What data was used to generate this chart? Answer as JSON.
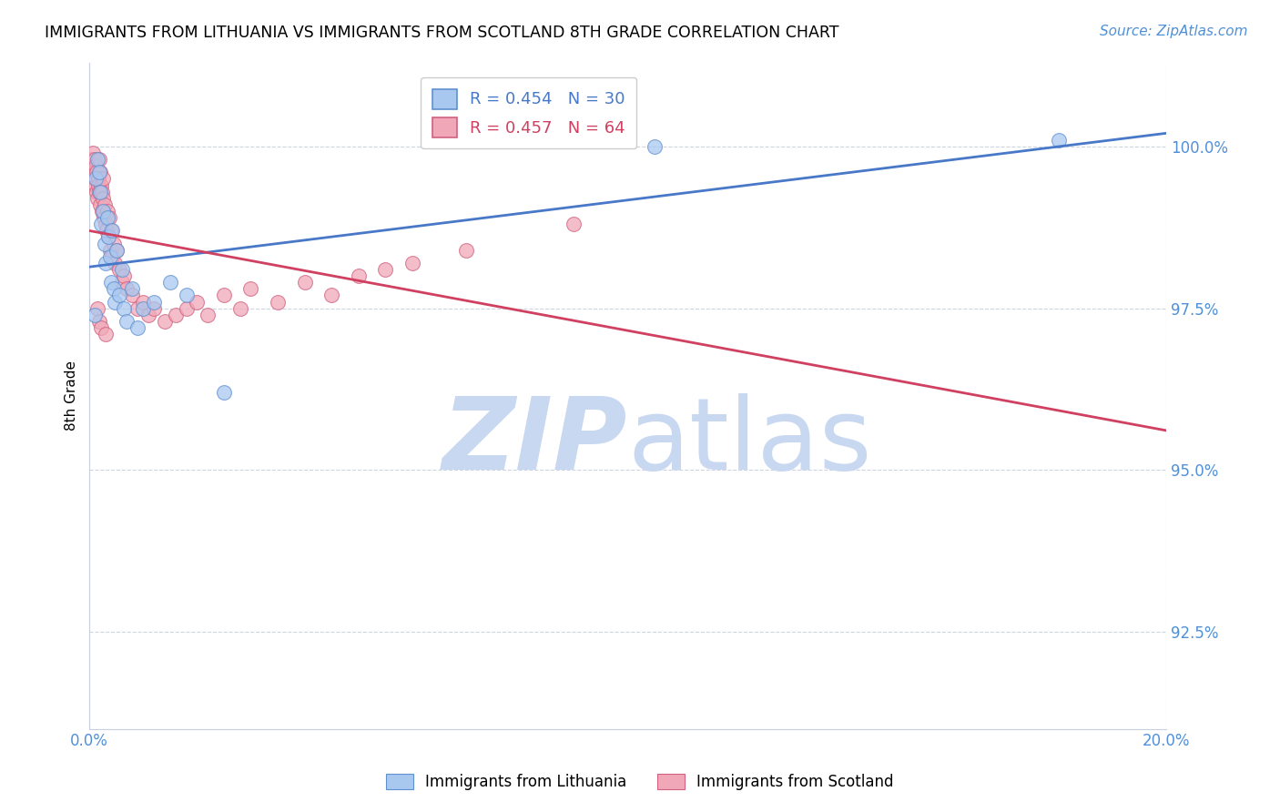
{
  "title": "IMMIGRANTS FROM LITHUANIA VS IMMIGRANTS FROM SCOTLAND 8TH GRADE CORRELATION CHART",
  "source": "Source: ZipAtlas.com",
  "ylabel": "8th Grade",
  "xlim": [
    0.0,
    20.0
  ],
  "ylim": [
    91.0,
    101.3
  ],
  "yticks": [
    92.5,
    95.0,
    97.5,
    100.0
  ],
  "ytick_labels": [
    "92.5%",
    "95.0%",
    "97.5%",
    "100.0%"
  ],
  "xtick_positions": [
    0.0,
    20.0
  ],
  "xtick_labels": [
    "0.0%",
    "20.0%"
  ],
  "color_blue_fill": "#a8c8f0",
  "color_blue_edge": "#6090d0",
  "color_pink_fill": "#f0a8b8",
  "color_pink_edge": "#d06080",
  "color_blue_line": "#4878c8",
  "color_pink_line": "#d04060",
  "color_axis_labels": "#5090d8",
  "watermark_zip_color": "#c8d8f0",
  "watermark_atlas_color": "#c8d8f0",
  "legend1_text": "R = 0.454   N = 30",
  "legend2_text": "R = 0.457   N = 64",
  "lithuania_x": [
    0.1,
    0.12,
    0.15,
    0.18,
    0.2,
    0.22,
    0.25,
    0.28,
    0.3,
    0.33,
    0.35,
    0.38,
    0.4,
    0.42,
    0.45,
    0.48,
    0.5,
    0.55,
    0.6,
    0.65,
    0.7,
    0.8,
    0.9,
    1.0,
    1.2,
    1.5,
    1.8,
    2.5,
    10.5,
    18.0
  ],
  "lithuania_y": [
    97.4,
    99.5,
    99.8,
    99.6,
    99.3,
    98.8,
    99.0,
    98.5,
    98.2,
    98.9,
    98.6,
    98.3,
    97.9,
    98.7,
    97.8,
    97.6,
    98.4,
    97.7,
    98.1,
    97.5,
    97.3,
    97.8,
    97.2,
    97.5,
    97.6,
    97.9,
    97.7,
    96.2,
    100.0,
    100.1
  ],
  "scotland_x": [
    0.05,
    0.06,
    0.07,
    0.08,
    0.09,
    0.1,
    0.11,
    0.12,
    0.13,
    0.14,
    0.15,
    0.16,
    0.17,
    0.18,
    0.19,
    0.2,
    0.21,
    0.22,
    0.23,
    0.24,
    0.25,
    0.26,
    0.27,
    0.28,
    0.3,
    0.32,
    0.33,
    0.35,
    0.37,
    0.38,
    0.4,
    0.42,
    0.45,
    0.48,
    0.5,
    0.55,
    0.6,
    0.65,
    0.7,
    0.8,
    0.9,
    1.0,
    1.1,
    1.2,
    1.4,
    1.6,
    1.8,
    2.0,
    2.2,
    2.5,
    2.8,
    3.0,
    3.5,
    4.0,
    4.5,
    5.0,
    5.5,
    6.0,
    7.0,
    9.0,
    0.15,
    0.18,
    0.22,
    0.3
  ],
  "scotland_y": [
    99.8,
    99.7,
    99.9,
    99.6,
    99.5,
    99.8,
    99.4,
    99.7,
    99.3,
    99.6,
    99.2,
    99.5,
    99.4,
    99.8,
    99.3,
    99.6,
    99.1,
    99.4,
    99.0,
    99.3,
    99.2,
    99.5,
    98.9,
    99.1,
    98.8,
    98.7,
    99.0,
    98.6,
    98.9,
    98.4,
    98.7,
    98.3,
    98.5,
    98.2,
    98.4,
    98.1,
    97.9,
    98.0,
    97.8,
    97.7,
    97.5,
    97.6,
    97.4,
    97.5,
    97.3,
    97.4,
    97.5,
    97.6,
    97.4,
    97.7,
    97.5,
    97.8,
    97.6,
    97.9,
    97.7,
    98.0,
    98.1,
    98.2,
    98.4,
    98.8,
    97.5,
    97.3,
    97.2,
    97.1
  ],
  "background_color": "#ffffff",
  "grid_color": "#c8d0e0",
  "spine_color": "#c8d0e0"
}
